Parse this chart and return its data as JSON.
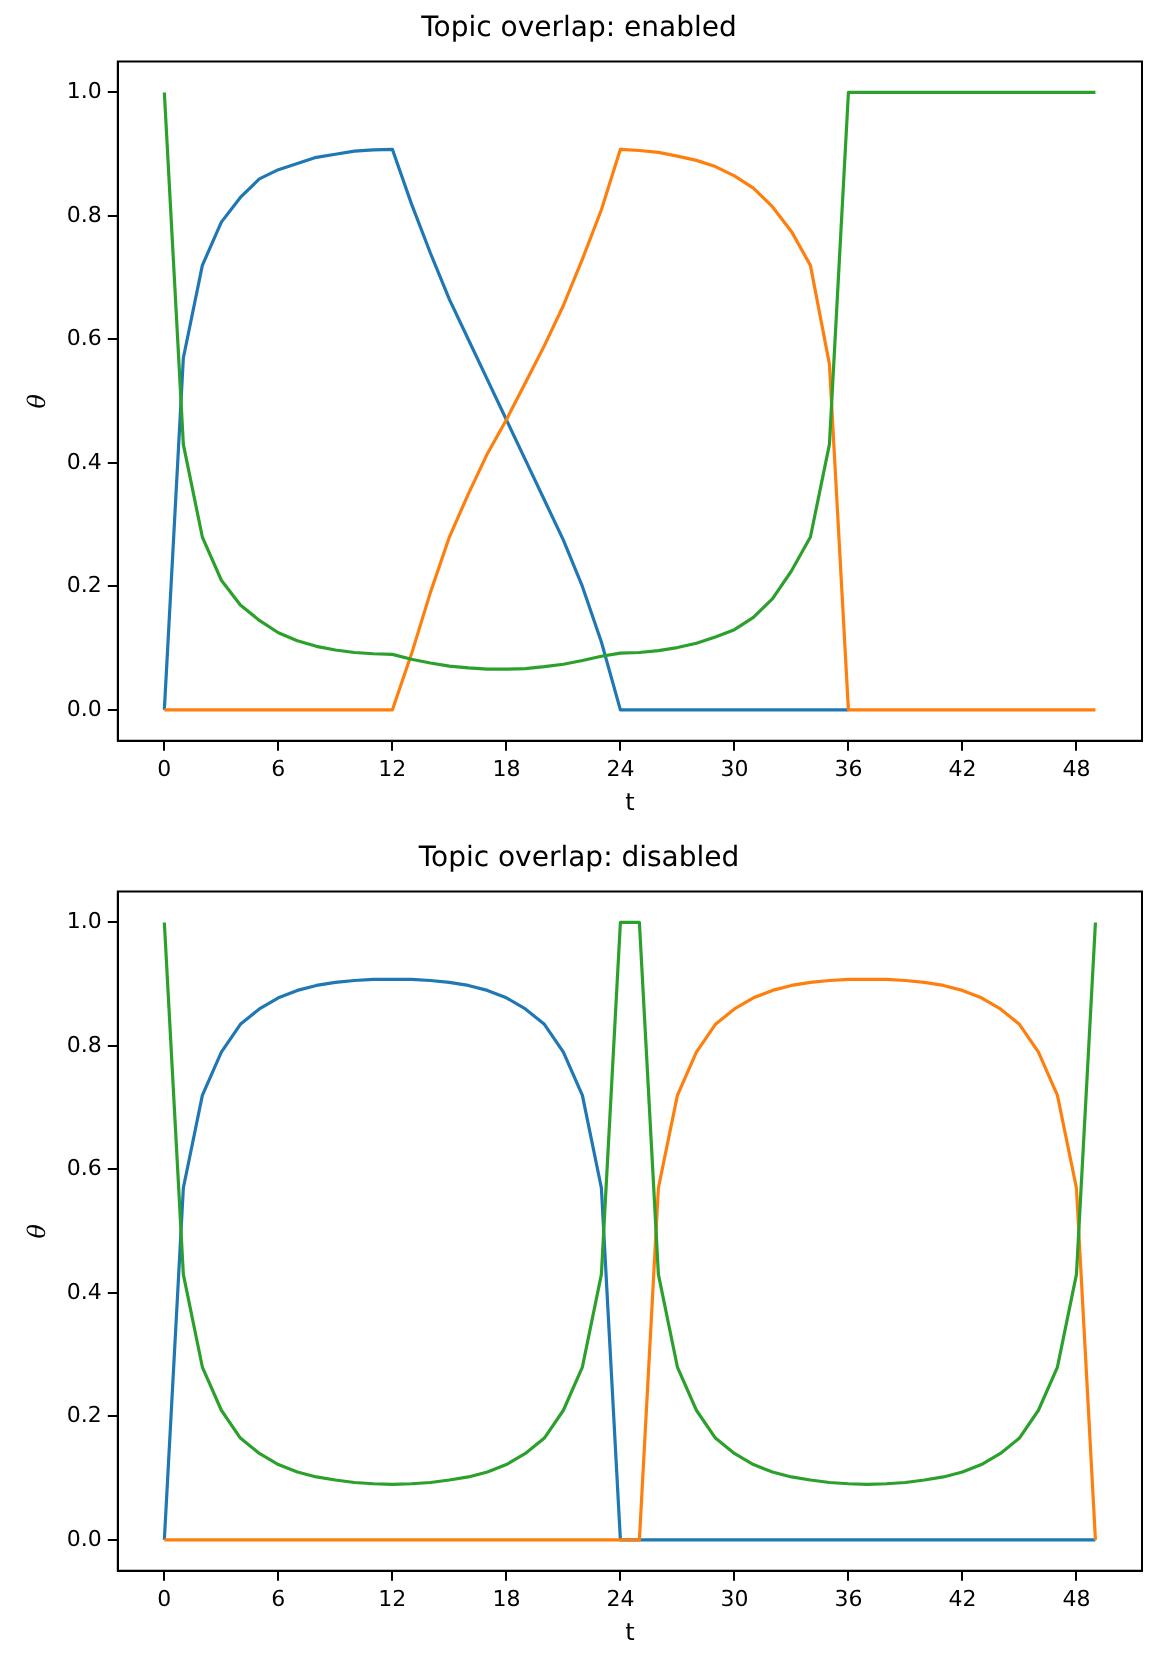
{
  "chart_data": [
    {
      "type": "line",
      "title": "Topic overlap: enabled",
      "xlabel": "t",
      "ylabel": "θ",
      "xlim": [
        -2.45,
        51.45
      ],
      "ylim": [
        -0.05,
        1.05
      ],
      "xticks": [
        0,
        6,
        12,
        18,
        24,
        30,
        36,
        42,
        48
      ],
      "yticks": [
        {
          "value": 0,
          "label": "0.0"
        },
        {
          "value": 0.2,
          "label": "0.2"
        },
        {
          "value": 0.4,
          "label": "0.4"
        },
        {
          "value": 0.6,
          "label": "0.6"
        },
        {
          "value": 0.8,
          "label": "0.8"
        },
        {
          "value": 1,
          "label": "1.0"
        }
      ],
      "grid": false,
      "legend": false,
      "marker": "none",
      "line_style": "solid",
      "x": [
        0,
        1,
        2,
        3,
        4,
        5,
        6,
        7,
        8,
        9,
        10,
        11,
        12,
        13,
        14,
        15,
        16,
        17,
        18,
        19,
        20,
        21,
        22,
        23,
        24,
        25,
        26,
        27,
        28,
        29,
        30,
        31,
        32,
        33,
        34,
        35,
        36,
        37,
        38,
        39,
        40,
        41,
        42,
        43,
        44,
        45,
        46,
        47,
        48,
        49
      ],
      "series": [
        {
          "color": "#1f77b4",
          "values": [
            0,
            0.57,
            0.72,
            0.79,
            0.83,
            0.86,
            0.875,
            0.885,
            0.895,
            0.9,
            0.905,
            0.907,
            0.908,
            0.82,
            0.74,
            0.665,
            0.6,
            0.535,
            0.47,
            0.405,
            0.34,
            0.275,
            0.2,
            0.11,
            0,
            0,
            0,
            0,
            0,
            0,
            0,
            0,
            0,
            0,
            0,
            0,
            0,
            null,
            null,
            null,
            null,
            null,
            null,
            null,
            null,
            null,
            null,
            null,
            null,
            null
          ]
        },
        {
          "color": "#ff7f0e",
          "values": [
            0,
            0,
            0,
            0,
            0,
            0,
            0,
            0,
            0,
            0,
            0,
            0,
            0,
            0.09,
            0.19,
            0.28,
            0.35,
            0.415,
            0.47,
            0.53,
            0.59,
            0.655,
            0.73,
            0.81,
            0.908,
            0.906,
            0.903,
            0.897,
            0.89,
            0.88,
            0.865,
            0.845,
            0.815,
            0.775,
            0.72,
            0.56,
            0,
            0,
            0,
            0,
            0,
            0,
            0,
            0,
            0,
            0,
            0,
            0,
            0,
            0
          ]
        },
        {
          "color": "#2ca02c",
          "values": [
            1,
            0.43,
            0.28,
            0.21,
            0.17,
            0.145,
            0.125,
            0.112,
            0.103,
            0.097,
            0.093,
            0.091,
            0.09,
            0.082,
            0.076,
            0.071,
            0.068,
            0.066,
            0.066,
            0.067,
            0.07,
            0.074,
            0.08,
            0.087,
            0.092,
            0.093,
            0.096,
            0.101,
            0.108,
            0.118,
            0.13,
            0.15,
            0.18,
            0.225,
            0.28,
            0.43,
            1,
            1,
            1,
            1,
            1,
            1,
            1,
            1,
            1,
            1,
            1,
            1,
            1,
            1
          ]
        }
      ]
    },
    {
      "type": "line",
      "title": "Topic overlap: disabled",
      "xlabel": "t",
      "ylabel": "θ",
      "xlim": [
        -2.45,
        51.45
      ],
      "ylim": [
        -0.05,
        1.05
      ],
      "xticks": [
        0,
        6,
        12,
        18,
        24,
        30,
        36,
        42,
        48
      ],
      "yticks": [
        {
          "value": 0,
          "label": "0.0"
        },
        {
          "value": 0.2,
          "label": "0.2"
        },
        {
          "value": 0.4,
          "label": "0.4"
        },
        {
          "value": 0.6,
          "label": "0.6"
        },
        {
          "value": 0.8,
          "label": "0.8"
        },
        {
          "value": 1,
          "label": "1.0"
        }
      ],
      "grid": false,
      "legend": false,
      "marker": "none",
      "line_style": "solid",
      "x": [
        0,
        1,
        2,
        3,
        4,
        5,
        6,
        7,
        8,
        9,
        10,
        11,
        12,
        13,
        14,
        15,
        16,
        17,
        18,
        19,
        20,
        21,
        22,
        23,
        24,
        25,
        26,
        27,
        28,
        29,
        30,
        31,
        32,
        33,
        34,
        35,
        36,
        37,
        38,
        39,
        40,
        41,
        42,
        43,
        44,
        45,
        46,
        47,
        48,
        49
      ],
      "series": [
        {
          "color": "#1f77b4",
          "values": [
            0,
            0.57,
            0.72,
            0.79,
            0.835,
            0.86,
            0.878,
            0.89,
            0.898,
            0.903,
            0.906,
            0.908,
            0.908,
            0.908,
            0.906,
            0.903,
            0.898,
            0.89,
            0.878,
            0.86,
            0.835,
            0.79,
            0.72,
            0.57,
            0,
            0,
            0,
            0,
            0,
            0,
            0,
            0,
            0,
            0,
            0,
            0,
            0,
            0,
            0,
            0,
            0,
            0,
            0,
            0,
            0,
            0,
            0,
            0,
            0,
            0
          ]
        },
        {
          "color": "#ff7f0e",
          "values": [
            0,
            0,
            0,
            0,
            0,
            0,
            0,
            0,
            0,
            0,
            0,
            0,
            0,
            0,
            0,
            0,
            0,
            0,
            0,
            0,
            0,
            0,
            0,
            0,
            0,
            0,
            0.57,
            0.72,
            0.79,
            0.835,
            0.86,
            0.878,
            0.89,
            0.898,
            0.903,
            0.906,
            0.908,
            0.908,
            0.908,
            0.906,
            0.903,
            0.898,
            0.89,
            0.878,
            0.86,
            0.835,
            0.79,
            0.72,
            0.57,
            0
          ]
        },
        {
          "color": "#2ca02c",
          "values": [
            1,
            0.43,
            0.28,
            0.21,
            0.165,
            0.14,
            0.122,
            0.11,
            0.102,
            0.097,
            0.093,
            0.091,
            0.09,
            0.091,
            0.093,
            0.097,
            0.102,
            0.11,
            0.122,
            0.14,
            0.165,
            0.21,
            0.28,
            0.43,
            1,
            1,
            0.43,
            0.28,
            0.21,
            0.165,
            0.14,
            0.122,
            0.11,
            0.102,
            0.097,
            0.093,
            0.091,
            0.09,
            0.091,
            0.093,
            0.097,
            0.102,
            0.11,
            0.122,
            0.14,
            0.165,
            0.21,
            0.28,
            0.43,
            1
          ]
        }
      ]
    }
  ]
}
